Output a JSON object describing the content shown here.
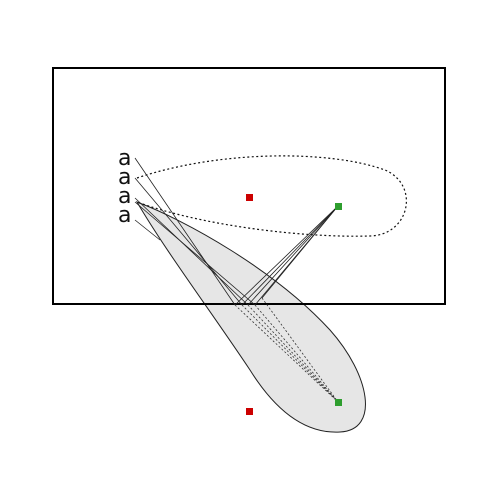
{
  "diagram": {
    "labels": [
      {
        "id": "a1",
        "text": "a"
      },
      {
        "id": "a2",
        "text": "a"
      },
      {
        "id": "a3",
        "text": "a"
      },
      {
        "id": "a4",
        "text": "a"
      }
    ],
    "colors": {
      "border": "#000000",
      "lobe_fill": "#e6e6e6",
      "green_marker": "#2e9e2e",
      "red_marker": "#cc0000",
      "line": "#222222"
    }
  }
}
